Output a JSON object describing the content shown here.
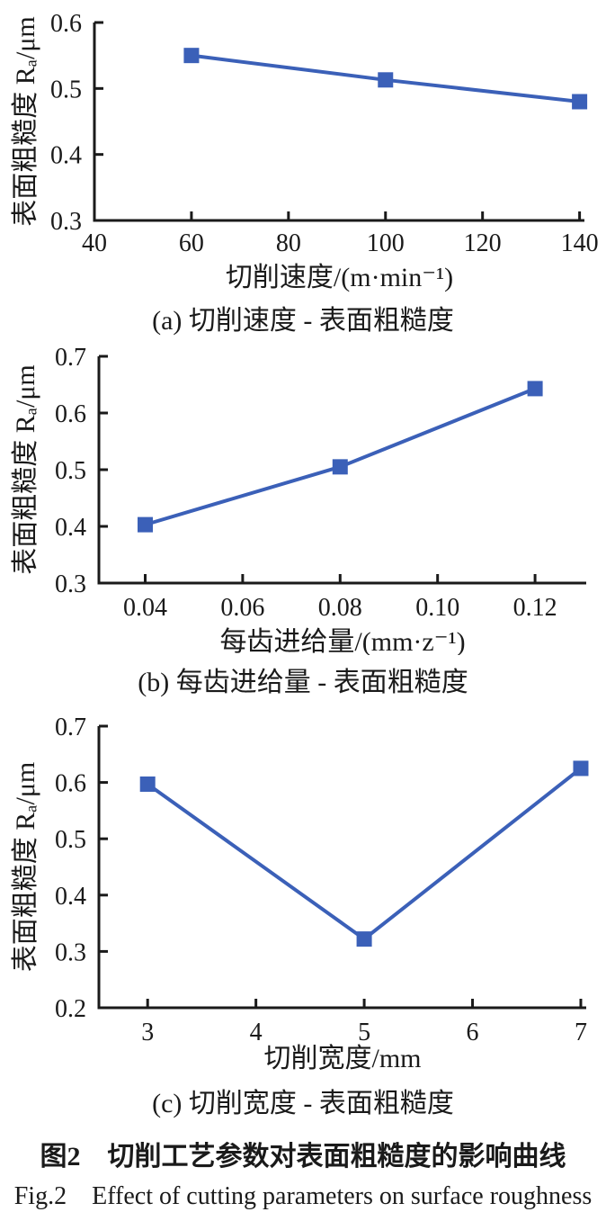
{
  "accent_color": "#3B60B8",
  "axis_color": "#1a1a1a",
  "chart_data": [
    {
      "id": "a",
      "type": "line",
      "title": "(a) 切削速度 - 表面粗糙度",
      "xlabel": "切削速度/(m·min⁻¹)",
      "ylabel": "表面粗糙度 Rₐ/μm",
      "x": [
        60,
        100,
        140
      ],
      "y": [
        0.55,
        0.513,
        0.48
      ],
      "xlim": [
        40,
        141
      ],
      "ylim": [
        0.3,
        0.6
      ],
      "xticks": {
        "values": [
          40,
          60,
          80,
          100,
          120,
          140
        ],
        "labels": [
          "40",
          "60",
          "80",
          "100",
          "120",
          "140"
        ]
      },
      "yticks": {
        "values": [
          0.3,
          0.4,
          0.5,
          0.6
        ],
        "labels": [
          "0.3",
          "0.4",
          "0.5",
          "0.6"
        ]
      },
      "marker": "square",
      "grid": false,
      "legend": "none"
    },
    {
      "id": "b",
      "type": "line",
      "title": "(b) 每齿进给量 - 表面粗糙度",
      "xlabel": "每齿进给量/(mm·z⁻¹)",
      "ylabel": "表面粗糙度 Rₐ/μm",
      "x": [
        0.04,
        0.08,
        0.12
      ],
      "y": [
        0.403,
        0.505,
        0.643
      ],
      "xlim": [
        0.0305,
        0.1305
      ],
      "ylim": [
        0.3,
        0.7
      ],
      "xticks": {
        "values": [
          0.04,
          0.06,
          0.08,
          0.1,
          0.12
        ],
        "labels": [
          "0.04",
          "0.06",
          "0.08",
          "0.10",
          "0.12"
        ]
      },
      "yticks": {
        "values": [
          0.3,
          0.4,
          0.5,
          0.6,
          0.7
        ],
        "labels": [
          "0.3",
          "0.4",
          "0.5",
          "0.6",
          "0.7"
        ]
      },
      "marker": "square",
      "grid": false,
      "legend": "none"
    },
    {
      "id": "c",
      "type": "line",
      "title": "(c) 切削宽度 - 表面粗糙度",
      "xlabel": "切削宽度/mm",
      "ylabel": "表面粗糙度 Rₐ/μm",
      "x": [
        3,
        5,
        7
      ],
      "y": [
        0.597,
        0.322,
        0.625
      ],
      "xlim": [
        2.55,
        7.05
      ],
      "ylim": [
        0.2,
        0.7
      ],
      "xticks": {
        "values": [
          3,
          4,
          5,
          6,
          7
        ],
        "labels": [
          "3",
          "4",
          "5",
          "6",
          "7"
        ]
      },
      "yticks": {
        "values": [
          0.2,
          0.3,
          0.4,
          0.5,
          0.6,
          0.7
        ],
        "labels": [
          "0.2",
          "0.3",
          "0.4",
          "0.5",
          "0.6",
          "0.7"
        ]
      },
      "marker": "square",
      "grid": false,
      "legend": "none"
    }
  ],
  "figure": {
    "caption_zh": "图2　切削工艺参数对表面粗糙度的影响曲线",
    "caption_en": "Fig.2　Effect of cutting parameters on surface roughness"
  }
}
